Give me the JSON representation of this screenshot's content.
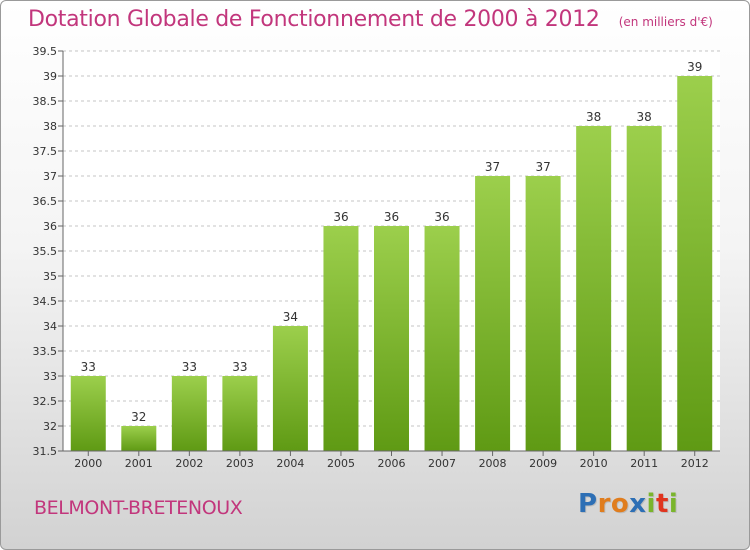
{
  "chart_data": {
    "type": "bar",
    "title": "Dotation Globale de Fonctionnement de 2000 à 2012",
    "unit_label": "(en milliers d'€)",
    "categories": [
      "2000",
      "2001",
      "2002",
      "2003",
      "2004",
      "2005",
      "2006",
      "2007",
      "2008",
      "2009",
      "2010",
      "2011",
      "2012"
    ],
    "values": [
      33,
      32,
      33,
      33,
      34,
      36,
      36,
      36,
      37,
      37,
      38,
      38,
      39
    ],
    "ylim": [
      31.5,
      39.5
    ],
    "yticks": [
      "31.5",
      "32",
      "32.5",
      "33",
      "33.5",
      "34",
      "34.5",
      "35",
      "35.5",
      "36",
      "36.5",
      "37",
      "37.5",
      "38",
      "38.5",
      "39",
      "39.5"
    ],
    "grid": "horizontal-dashed",
    "legend": "none",
    "colors": {
      "bar_top": "#9ccf4c",
      "bar_bottom": "#5f9a14",
      "title": "#c2367c"
    }
  },
  "footer": {
    "commune": "BELMONT-BRETENOUX",
    "logo_letters": [
      {
        "ch": "P",
        "color": "#2d6fb5"
      },
      {
        "ch": "r",
        "color": "#e07d1e"
      },
      {
        "ch": "o",
        "color": "#e07d1e"
      },
      {
        "ch": "x",
        "color": "#2d6fb5"
      },
      {
        "ch": "i",
        "color": "#7ab52c"
      },
      {
        "ch": "t",
        "color": "#e0341e"
      },
      {
        "ch": "i",
        "color": "#7ab52c"
      }
    ]
  }
}
